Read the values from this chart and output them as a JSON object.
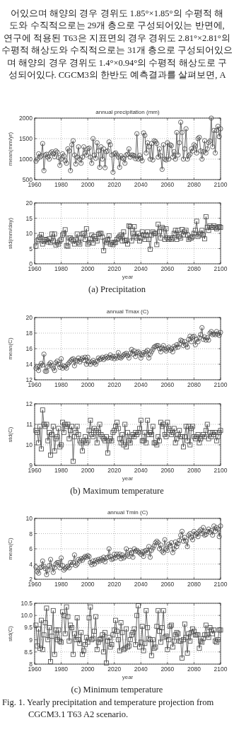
{
  "chart_data": [
    {
      "type": "other",
      "annotations": [
        "어있으며 해양의 경우 경위도 1.85°×1.85°의 수평적 해",
        "도와 수직적으로는 29개 층으로 구성되어있는 반면에,",
        "연구에 적용된 T63은 지표면의 경우 경위도 2.81°×2.81°의",
        "수평적 해상도와 수직적으로는 31개 층으로 구성되어있으",
        "며 해양의 경우 경위도 1.4°×0.94°의 수평적 해상도로 구",
        "성되어있다. CGCM3의 한반도 예측결과를 살펴보면, A"
      ]
    },
    {
      "type": "line",
      "title": "annual precipitation (mm)",
      "ylabel": "mean(mm/yr)",
      "marker": "circle",
      "grid": true,
      "xlim": [
        1960,
        2100
      ],
      "xticks": [
        1960,
        1980,
        2000,
        2020,
        2040,
        2060,
        2080,
        2100
      ],
      "ylim": [
        500,
        2000
      ],
      "yticks": [
        500,
        1000,
        1500,
        2000
      ],
      "x": [
        1961,
        1962,
        1963,
        1964,
        1965,
        1966,
        1967,
        1968,
        1969,
        1970,
        1971,
        1972,
        1973,
        1974,
        1975,
        1976,
        1977,
        1978,
        1979,
        1980,
        1981,
        1982,
        1983,
        1984,
        1985,
        1986,
        1987,
        1988,
        1989,
        1990,
        1991,
        1992,
        1993,
        1994,
        1995,
        1996,
        1997,
        1998,
        1999,
        2000,
        2001,
        2002,
        2003,
        2004,
        2005,
        2006,
        2007,
        2008,
        2009,
        2010,
        2011,
        2012,
        2013,
        2014,
        2015,
        2016,
        2017,
        2018,
        2019,
        2020,
        2021,
        2022,
        2023,
        2024,
        2025,
        2026,
        2027,
        2028,
        2029,
        2030,
        2031,
        2032,
        2033,
        2034,
        2035,
        2036,
        2037,
        2038,
        2039,
        2040,
        2041,
        2042,
        2043,
        2044,
        2045,
        2046,
        2047,
        2048,
        2049,
        2050,
        2051,
        2052,
        2053,
        2054,
        2055,
        2056,
        2057,
        2058,
        2059,
        2060,
        2061,
        2062,
        2063,
        2064,
        2065,
        2066,
        2067,
        2068,
        2069,
        2070,
        2071,
        2072,
        2073,
        2074,
        2075,
        2076,
        2077,
        2078,
        2079,
        2080,
        2081,
        2082,
        2083,
        2084,
        2085,
        2086,
        2087,
        2088,
        2089,
        2090,
        2091,
        2092,
        2093,
        2094,
        2095,
        2096,
        2097,
        2098,
        2099,
        2100
      ],
      "series": [
        {
          "color": "#444444",
          "values": [
            950,
            1000,
            1130,
            1050,
            1080,
            1380,
            720,
            1100,
            1120,
            1050,
            1000,
            1150,
            1180,
            1130,
            1060,
            1200,
            1170,
            1040,
            850,
            1000,
            1130,
            1080,
            960,
            900,
            1250,
            1200,
            720,
            1350,
            1450,
            1100,
            880,
            1050,
            1300,
            1000,
            900,
            1050,
            1300,
            1150,
            1100,
            1250,
            1270,
            1050,
            900,
            1500,
            1100,
            1020,
            1400,
            1200,
            800,
            1300,
            1000,
            1250,
            790,
            1180,
            1200,
            1420,
            1350,
            1100,
            680,
            1130,
            1150,
            1100,
            1050,
            800,
            1080,
            1030,
            1010,
            900,
            1100,
            1120,
            1250,
            1050,
            1100,
            1100,
            1080,
            1010,
            1620,
            1000,
            1090,
            1020,
            960,
            1640,
            1580,
            1150,
            1400,
            1300,
            1000,
            1380,
            980,
            1450,
            1430,
            1380,
            1050,
            1250,
            1080,
            750,
            1350,
            1000,
            980,
            1400,
            1000,
            1350,
            1330,
            1050,
            1180,
            1000,
            1650,
            1100,
            1400,
            1900,
            1650,
            1000,
            1250,
            1740,
            1000,
            1080,
            1120,
            1250,
            1200,
            1350,
            1320,
            1150,
            1500,
            1530,
            1200,
            1000,
            1180,
            1450,
            1150,
            1250,
            1400,
            1440,
            2000,
            1300,
            1700,
            1150,
            1700,
            1800,
            1550,
            1740
          ]
        }
      ]
    },
    {
      "type": "line",
      "ylabel": "std(mm/day)",
      "xlabel": "year",
      "marker": "square",
      "grid": true,
      "xlim": [
        1960,
        2100
      ],
      "xticks": [
        1960,
        1980,
        2000,
        2020,
        2040,
        2060,
        2080,
        2100
      ],
      "ylim": [
        0,
        20
      ],
      "yticks": [
        0,
        5,
        10,
        15,
        20
      ],
      "annotations": [
        "(a) Precipitation"
      ],
      "x": [
        1961,
        1962,
        1963,
        1964,
        1965,
        1966,
        1967,
        1968,
        1969,
        1970,
        1971,
        1972,
        1973,
        1974,
        1975,
        1976,
        1977,
        1978,
        1979,
        1980,
        1981,
        1982,
        1983,
        1984,
        1985,
        1986,
        1987,
        1988,
        1989,
        1990,
        1991,
        1992,
        1993,
        1994,
        1995,
        1996,
        1997,
        1998,
        1999,
        2000,
        2001,
        2002,
        2003,
        2004,
        2005,
        2006,
        2007,
        2008,
        2009,
        2010,
        2011,
        2012,
        2013,
        2014,
        2015,
        2016,
        2017,
        2018,
        2019,
        2020,
        2021,
        2022,
        2023,
        2024,
        2025,
        2026,
        2027,
        2028,
        2029,
        2030,
        2031,
        2032,
        2033,
        2034,
        2035,
        2036,
        2037,
        2038,
        2039,
        2040,
        2041,
        2042,
        2043,
        2044,
        2045,
        2046,
        2047,
        2048,
        2049,
        2050,
        2051,
        2052,
        2053,
        2054,
        2055,
        2056,
        2057,
        2058,
        2059,
        2060,
        2061,
        2062,
        2063,
        2064,
        2065,
        2066,
        2067,
        2068,
        2069,
        2070,
        2071,
        2072,
        2073,
        2074,
        2075,
        2076,
        2077,
        2078,
        2079,
        2080,
        2081,
        2082,
        2083,
        2084,
        2085,
        2086,
        2087,
        2088,
        2089,
        2090,
        2091,
        2092,
        2093,
        2094,
        2095,
        2096,
        2097,
        2098,
        2099,
        2100
      ],
      "series": [
        {
          "color": "#444444",
          "values": [
            5.8,
            7.5,
            8.0,
            8.8,
            9.6,
            6.5,
            7.4,
            8.0,
            7.8,
            7.2,
            8.2,
            7.0,
            9.8,
            7.5,
            9.8,
            6.2,
            7.0,
            6.5,
            7.5,
            8.0,
            9.5,
            10.0,
            11.2,
            6.0,
            5.8,
            8.5,
            8.5,
            8.0,
            7.5,
            6.5,
            8.0,
            9.8,
            7.0,
            6.5,
            8.5,
            9.8,
            10.0,
            8.0,
            11.5,
            6.5,
            7.0,
            8.2,
            9.5,
            6.8,
            9.0,
            8.2,
            7.5,
            9.7,
            10.0,
            10.0,
            8.8,
            4.3,
            7.5,
            7.0,
            8.0,
            9.2,
            6.5,
            7.0,
            6.3,
            7.0,
            7.0,
            8.0,
            8.5,
            9.0,
            9.5,
            7.5,
            10.5,
            7.5,
            7.8,
            6.5,
            12.5,
            12.2,
            7.5,
            10.0,
            12.2,
            9.0,
            8.5,
            10.0,
            7.5,
            8.5,
            10.5,
            9.5,
            8.0,
            9.5,
            10.5,
            8.0,
            4.8,
            9.5,
            10.5,
            10.0,
            10.0,
            6.3,
            13.0,
            10.5,
            8.5,
            12.0,
            11.5,
            8.0,
            11.5,
            8.5,
            8.0,
            8.5,
            8.0,
            8.5,
            10.0,
            11.0,
            8.0,
            11.0,
            9.0,
            8.5,
            11.3,
            9.5,
            10.5,
            11.0,
            9.5,
            8.0,
            8.5,
            8.5,
            9.0,
            10.0,
            11.0,
            14.0,
            9.0,
            9.5,
            10.0,
            11.0,
            9.5,
            8.2,
            15.5,
            12.0,
            11.0,
            12.5,
            12.0,
            12.0,
            12.5,
            12.0,
            11.5,
            12.0,
            12.2,
            12.0
          ]
        }
      ]
    },
    {
      "type": "line",
      "title": "annual Tmax (C)",
      "ylabel": "mean(C)",
      "marker": "circle",
      "grid": true,
      "xlim": [
        1960,
        2100
      ],
      "xticks": [
        1960,
        1980,
        2000,
        2020,
        2040,
        2060,
        2080,
        2100
      ],
      "ylim": [
        12,
        20
      ],
      "yticks": [
        12,
        14,
        16,
        18,
        20
      ],
      "x": [
        1961,
        1962,
        1963,
        1964,
        1965,
        1966,
        1967,
        1968,
        1969,
        1970,
        1971,
        1972,
        1973,
        1974,
        1975,
        1976,
        1977,
        1978,
        1979,
        1980,
        1981,
        1982,
        1983,
        1984,
        1985,
        1986,
        1987,
        1988,
        1989,
        1990,
        1991,
        1992,
        1993,
        1994,
        1995,
        1996,
        1997,
        1998,
        1999,
        2000,
        2001,
        2002,
        2003,
        2004,
        2005,
        2006,
        2007,
        2008,
        2009,
        2010,
        2011,
        2012,
        2013,
        2014,
        2015,
        2016,
        2017,
        2018,
        2019,
        2020,
        2021,
        2022,
        2023,
        2024,
        2025,
        2026,
        2027,
        2028,
        2029,
        2030,
        2031,
        2032,
        2033,
        2034,
        2035,
        2036,
        2037,
        2038,
        2039,
        2040,
        2041,
        2042,
        2043,
        2044,
        2045,
        2046,
        2047,
        2048,
        2049,
        2050,
        2051,
        2052,
        2053,
        2054,
        2055,
        2056,
        2057,
        2058,
        2059,
        2060,
        2061,
        2062,
        2063,
        2064,
        2065,
        2066,
        2067,
        2068,
        2069,
        2070,
        2071,
        2072,
        2073,
        2074,
        2075,
        2076,
        2077,
        2078,
        2079,
        2080,
        2081,
        2082,
        2083,
        2084,
        2085,
        2086,
        2087,
        2088,
        2089,
        2090,
        2091,
        2092,
        2093,
        2094,
        2095,
        2096,
        2097,
        2098,
        2099,
        2100
      ],
      "series": [
        {
          "color": "#444444",
          "values": [
            13.5,
            13.7,
            13.2,
            13.8,
            14.1,
            13.9,
            15.3,
            13.1,
            13.1,
            13.7,
            14.0,
            14.2,
            13.8,
            13.5,
            13.2,
            14.2,
            14.4,
            14.0,
            13.6,
            14.7,
            13.5,
            13.8,
            13.7,
            13.5,
            14.0,
            14.2,
            14.4,
            14.6,
            14.7,
            13.8,
            14.5,
            14.4,
            14.8,
            14.3,
            14.6,
            14.8,
            14.5,
            14.9,
            14.0,
            14.9,
            14.3,
            14.0,
            14.3,
            14.5,
            14.2,
            14.0,
            14.4,
            14.8,
            14.6,
            14.7,
            14.9,
            14.6,
            14.8,
            15.0,
            14.8,
            14.9,
            15.2,
            14.8,
            15.0,
            14.7,
            15.0,
            14.8,
            15.5,
            14.9,
            14.8,
            15.0,
            15.2,
            15.3,
            15.4,
            15.1,
            14.8,
            15.4,
            15.9,
            15.3,
            15.7,
            15.0,
            15.5,
            15.6,
            15.4,
            14.8,
            15.2,
            15.5,
            15.3,
            15.6,
            15.8,
            14.8,
            15.3,
            15.6,
            15.9,
            16.2,
            16.3,
            16.4,
            16.4,
            16.0,
            15.6,
            16.1,
            16.4,
            15.9,
            15.7,
            16.0,
            16.2,
            15.8,
            16.0,
            15.6,
            16.3,
            16.1,
            16.5,
            16.2,
            16.6,
            17.1,
            17.0,
            16.4,
            16.9,
            16.5,
            16.2,
            17.2,
            17.6,
            16.9,
            17.5,
            17.6,
            16.5,
            17.2,
            16.9,
            17.4,
            17.8,
            18.7,
            17.2,
            17.5,
            17.1,
            17.4,
            17.1,
            18.0,
            18.2,
            17.8,
            17.9,
            17.8,
            18.2,
            17.9,
            17.7,
            18.1
          ]
        }
      ]
    },
    {
      "type": "line",
      "ylabel": "std(C)",
      "xlabel": "year",
      "marker": "square",
      "grid": true,
      "xlim": [
        1960,
        2100
      ],
      "xticks": [
        1960,
        1980,
        2000,
        2020,
        2040,
        2060,
        2080,
        2100
      ],
      "ylim": [
        9,
        12
      ],
      "yticks": [
        9,
        10,
        11,
        12
      ],
      "annotations": [
        "(b) Maximum temperature"
      ],
      "x": [
        1961,
        1962,
        1963,
        1964,
        1965,
        1966,
        1967,
        1968,
        1969,
        1970,
        1971,
        1972,
        1973,
        1974,
        1975,
        1976,
        1977,
        1978,
        1979,
        1980,
        1981,
        1982,
        1983,
        1984,
        1985,
        1986,
        1987,
        1988,
        1989,
        1990,
        1991,
        1992,
        1993,
        1994,
        1995,
        1996,
        1997,
        1998,
        1999,
        2000,
        2001,
        2002,
        2003,
        2004,
        2005,
        2006,
        2007,
        2008,
        2009,
        2010,
        2011,
        2012,
        2013,
        2014,
        2015,
        2016,
        2017,
        2018,
        2019,
        2020,
        2021,
        2022,
        2023,
        2024,
        2025,
        2026,
        2027,
        2028,
        2029,
        2030,
        2031,
        2032,
        2033,
        2034,
        2035,
        2036,
        2037,
        2038,
        2039,
        2040,
        2041,
        2042,
        2043,
        2044,
        2045,
        2046,
        2047,
        2048,
        2049,
        2050,
        2051,
        2052,
        2053,
        2054,
        2055,
        2056,
        2057,
        2058,
        2059,
        2060,
        2061,
        2062,
        2063,
        2064,
        2065,
        2066,
        2067,
        2068,
        2069,
        2070,
        2071,
        2072,
        2073,
        2074,
        2075,
        2076,
        2077,
        2078,
        2079,
        2080,
        2081,
        2082,
        2083,
        2084,
        2085,
        2086,
        2087,
        2088,
        2089,
        2090,
        2091,
        2092,
        2093,
        2094,
        2095,
        2096,
        2097,
        2098,
        2099,
        2100
      ],
      "series": [
        {
          "color": "#444444",
          "values": [
            10.7,
            10.6,
            10.1,
            10.9,
            9.8,
            11.7,
            11.0,
            10.9,
            11.0,
            10.2,
            10.6,
            9.5,
            10.5,
            10.9,
            9.7,
            10.3,
            10.4,
            10.8,
            9.9,
            10.0,
            11.1,
            10.6,
            11.0,
            10.9,
            11.0,
            10.3,
            10.7,
            10.9,
            9.2,
            10.4,
            10.6,
            10.9,
            10.5,
            10.2,
            10.1,
            9.7,
            10.2,
            10.4,
            10.1,
            10.2,
            10.7,
            11.2,
            10.5,
            10.4,
            10.8,
            10.7,
            10.1,
            10.6,
            11.0,
            10.5,
            10.4,
            10.3,
            10.2,
            10.4,
            9.6,
            10.2,
            10.3,
            10.2,
            10.6,
            10.7,
            10.9,
            11.1,
            10.8,
            10.3,
            10.1,
            10.5,
            10.0,
            11.0,
            9.9,
            10.6,
            10.2,
            10.1,
            10.4,
            10.5,
            10.4,
            10.6,
            10.5,
            10.6,
            10.8,
            11.2,
            10.2,
            10.2,
            10.6,
            10.1,
            11.2,
            10.5,
            10.6,
            10.5,
            10.9,
            10.1,
            10.1,
            10.0,
            10.4,
            10.2,
            11.1,
            10.9,
            11.0,
            10.5,
            10.4,
            11.1,
            10.8,
            10.7,
            10.5,
            10.6,
            10.8,
            10.1,
            10.3,
            10.5,
            10.7,
            10.4,
            10.4,
            9.9,
            10.4,
            10.9,
            10.2,
            10.9,
            10.0,
            10.8,
            10.9,
            10.4,
            10.3,
            10.4,
            10.5,
            10.1,
            10.3,
            10.4,
            10.5,
            10.4,
            10.7,
            11.0,
            10.3,
            10.6,
            10.4,
            10.6,
            10.5,
            10.6,
            10.2,
            10.4,
            10.6,
            10.7
          ]
        }
      ]
    },
    {
      "type": "line",
      "title": "annual Tmin (C)",
      "ylabel": "mean(C)",
      "marker": "circle",
      "grid": true,
      "xlim": [
        1960,
        2100
      ],
      "xticks": [
        1960,
        1980,
        2000,
        2020,
        2040,
        2060,
        2080,
        2100
      ],
      "ylim": [
        2,
        10
      ],
      "yticks": [
        2,
        4,
        6,
        8,
        10
      ],
      "x": [
        1961,
        1962,
        1963,
        1964,
        1965,
        1966,
        1967,
        1968,
        1969,
        1970,
        1971,
        1972,
        1973,
        1974,
        1975,
        1976,
        1977,
        1978,
        1979,
        1980,
        1981,
        1982,
        1983,
        1984,
        1985,
        1986,
        1987,
        1988,
        1989,
        1990,
        1991,
        1992,
        1993,
        1994,
        1995,
        1996,
        1997,
        1998,
        1999,
        2000,
        2001,
        2002,
        2003,
        2004,
        2005,
        2006,
        2007,
        2008,
        2009,
        2010,
        2011,
        2012,
        2013,
        2014,
        2015,
        2016,
        2017,
        2018,
        2019,
        2020,
        2021,
        2022,
        2023,
        2024,
        2025,
        2026,
        2027,
        2028,
        2029,
        2030,
        2031,
        2032,
        2033,
        2034,
        2035,
        2036,
        2037,
        2038,
        2039,
        2040,
        2041,
        2042,
        2043,
        2044,
        2045,
        2046,
        2047,
        2048,
        2049,
        2050,
        2051,
        2052,
        2053,
        2054,
        2055,
        2056,
        2057,
        2058,
        2059,
        2060,
        2061,
        2062,
        2063,
        2064,
        2065,
        2066,
        2067,
        2068,
        2069,
        2070,
        2071,
        2072,
        2073,
        2074,
        2075,
        2076,
        2077,
        2078,
        2079,
        2080,
        2081,
        2082,
        2083,
        2084,
        2085,
        2086,
        2087,
        2088,
        2089,
        2090,
        2091,
        2092,
        2093,
        2094,
        2095,
        2096,
        2097,
        2098,
        2099,
        2100
      ],
      "series": [
        {
          "color": "#444444",
          "values": [
            3.6,
            3.0,
            2.8,
            3.5,
            3.6,
            4.4,
            3.7,
            3.4,
            2.6,
            3.2,
            3.8,
            4.6,
            3.6,
            2.9,
            3.5,
            4.0,
            4.2,
            4.2,
            3.5,
            4.8,
            3.8,
            3.2,
            3.4,
            3.6,
            3.7,
            3.5,
            4.2,
            3.9,
            4.2,
            5.2,
            3.8,
            4.0,
            4.6,
            4.4,
            4.7,
            4.5,
            4.8,
            5.0,
            4.9,
            5.1,
            5.0,
            4.2,
            3.9,
            4.4,
            4.0,
            4.5,
            4.3,
            4.6,
            4.4,
            4.7,
            4.5,
            4.9,
            4.3,
            4.8,
            4.9,
            6.0,
            5.0,
            4.6,
            4.7,
            5.3,
            4.8,
            5.3,
            5.0,
            5.3,
            4.7,
            5.2,
            4.8,
            5.0,
            6.0,
            5.2,
            5.0,
            5.8,
            5.5,
            4.9,
            6.0,
            5.7,
            5.8,
            5.6,
            5.5,
            5.3,
            5.6,
            5.0,
            5.7,
            5.8,
            5.5,
            6.3,
            4.9,
            5.8,
            6.1,
            6.4,
            6.8,
            7.0,
            6.8,
            6.0,
            6.5,
            5.7,
            5.5,
            7.2,
            6.0,
            5.8,
            6.6,
            6.4,
            6.8,
            5.5,
            6.0,
            6.9,
            6.3,
            6.7,
            7.1,
            7.8,
            8.3,
            7.0,
            7.5,
            7.0,
            6.3,
            7.8,
            8.0,
            7.5,
            7.2,
            8.3,
            7.8,
            8.0,
            7.6,
            8.3,
            8.5,
            8.0,
            8.8,
            7.8,
            7.9,
            8.3,
            8.6,
            8.2,
            8.4,
            7.8,
            9.0,
            8.3,
            8.8,
            8.6,
            7.6,
            9.0
          ]
        }
      ]
    },
    {
      "type": "line",
      "ylabel": "std(C)",
      "xlabel": "year",
      "marker": "square",
      "grid": true,
      "xlim": [
        1960,
        2100
      ],
      "xticks": [
        1960,
        1980,
        2000,
        2020,
        2040,
        2060,
        2080,
        2100
      ],
      "ylim": [
        8,
        10.5
      ],
      "yticks": [
        8,
        8.5,
        9,
        9.5,
        {
          "value": 10,
          "label": "10.0"
        },
        10.5
      ],
      "annotations": [
        "(c) Minimum temperature",
        "Fig. 1. Yearly precipitation and temperature projection from",
        "CGCM3.1 T63 A2 scenario."
      ],
      "x": [
        1961,
        1962,
        1963,
        1964,
        1965,
        1966,
        1967,
        1968,
        1969,
        1970,
        1971,
        1972,
        1973,
        1974,
        1975,
        1976,
        1977,
        1978,
        1979,
        1980,
        1981,
        1982,
        1983,
        1984,
        1985,
        1986,
        1987,
        1988,
        1989,
        1990,
        1991,
        1992,
        1993,
        1994,
        1995,
        1996,
        1997,
        1998,
        1999,
        2000,
        2001,
        2002,
        2003,
        2004,
        2005,
        2006,
        2007,
        2008,
        2009,
        2010,
        2011,
        2012,
        2013,
        2014,
        2015,
        2016,
        2017,
        2018,
        2019,
        2020,
        2021,
        2022,
        2023,
        2024,
        2025,
        2026,
        2027,
        2028,
        2029,
        2030,
        2031,
        2032,
        2033,
        2034,
        2035,
        2036,
        2037,
        2038,
        2039,
        2040,
        2041,
        2042,
        2043,
        2044,
        2045,
        2046,
        2047,
        2048,
        2049,
        2050,
        2051,
        2052,
        2053,
        2054,
        2055,
        2056,
        2057,
        2058,
        2059,
        2060,
        2061,
        2062,
        2063,
        2064,
        2065,
        2066,
        2067,
        2068,
        2069,
        2070,
        2071,
        2072,
        2073,
        2074,
        2075,
        2076,
        2077,
        2078,
        2079,
        2080,
        2081,
        2082,
        2083,
        2084,
        2085,
        2086,
        2087,
        2088,
        2089,
        2090,
        2091,
        2092,
        2093,
        2094,
        2095,
        2096,
        2097,
        2098,
        2099,
        2100
      ],
      "series": [
        {
          "color": "#444444",
          "values": [
            9.6,
            8.75,
            9.45,
            8.65,
            9.8,
            8.6,
            9.2,
            9.7,
            10.3,
            9.0,
            9.5,
            8.1,
            9.15,
            10.2,
            8.4,
            9.4,
            9.0,
            9.4,
            8.95,
            8.9,
            10.15,
            10.0,
            9.25,
            10.35,
            9.95,
            8.95,
            9.6,
            9.5,
            8.4,
            9.25,
            9.0,
            9.9,
            9.0,
            8.85,
            9.3,
            8.4,
            8.55,
            8.8,
            9.1,
            8.9,
            9.9,
            10.35,
            9.0,
            9.05,
            9.35,
            9.95,
            8.6,
            8.9,
            9.0,
            9.05,
            9.2,
            8.5,
            9.3,
            8.05,
            8.95,
            9.1,
            8.7,
            8.8,
            9.2,
            9.4,
            9.8,
            9.35,
            9.0,
            8.55,
            9.7,
            9.3,
            8.6,
            8.65,
            9.45,
            8.7,
            8.75,
            9.0,
            9.2,
            9.3,
            9.45,
            8.8,
            10.0,
            10.4,
            8.7,
            8.9,
            9.55,
            8.55,
            8.85,
            10.2,
            9.5,
            9.05,
            9.0,
            8.35,
            9.0,
            8.65,
            8.7,
            9.55,
            10.2,
            9.35,
            8.9,
            9.5,
            10.2,
            9.1,
            9.15,
            8.6,
            9.0,
            9.55,
            9.6,
            8.7,
            8.95,
            9.2,
            9.3,
            9.25,
            8.95,
            8.95,
            8.25,
            9.0,
            9.65,
            9.1,
            8.45,
            9.25,
            8.95,
            9.3,
            9.45,
            9.35,
            9.2,
            9.2,
            9.2,
            8.65,
            8.95,
            8.9,
            9.05,
            9.2,
            9.6,
            9.2,
            9.1,
            9.5,
            9.4,
            9.25,
            9.4,
            8.95,
            8.9,
            9.0,
            9.4,
            9.4
          ]
        }
      ]
    }
  ]
}
